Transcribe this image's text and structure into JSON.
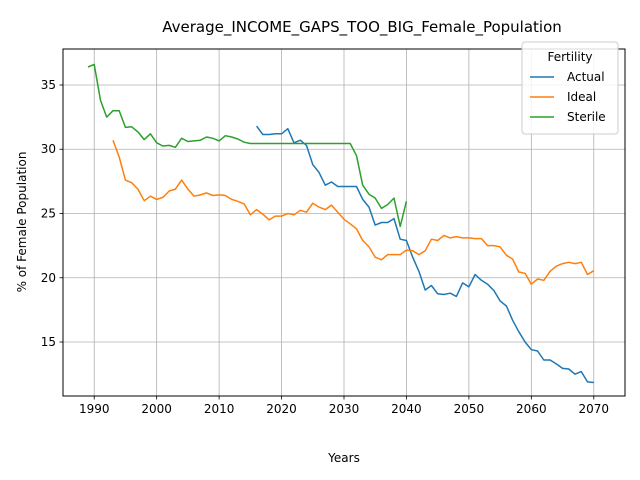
{
  "chart_data": {
    "type": "line",
    "title": "Average_INCOME_GAPS_TOO_BIG_Female_Population",
    "xlabel": "Years",
    "ylabel": "% of Female Population",
    "xlim": [
      1985,
      2075
    ],
    "ylim": [
      10.8,
      37.8
    ],
    "xticks": [
      1990,
      2000,
      2010,
      2020,
      2030,
      2040,
      2050,
      2060,
      2070
    ],
    "yticks": [
      15,
      20,
      25,
      30,
      35
    ],
    "grid": true,
    "legend": {
      "title": "Fertility",
      "placement": "top-right"
    },
    "series": [
      {
        "name": "Actual",
        "color": "#1f77b4",
        "points": [
          [
            2016,
            31.8
          ],
          [
            2017,
            31.15
          ],
          [
            2018,
            31.15
          ],
          [
            2019,
            31.2
          ],
          [
            2020,
            31.2
          ],
          [
            2021,
            31.6
          ],
          [
            2022,
            30.5
          ],
          [
            2023,
            30.7
          ],
          [
            2024,
            30.3
          ],
          [
            2025,
            28.8
          ],
          [
            2026,
            28.2
          ],
          [
            2027,
            27.2
          ],
          [
            2028,
            27.45
          ],
          [
            2029,
            27.1
          ],
          [
            2030,
            27.1
          ],
          [
            2031,
            27.1
          ],
          [
            2032,
            27.1
          ],
          [
            2033,
            26.1
          ],
          [
            2034,
            25.5
          ],
          [
            2035,
            24.1
          ],
          [
            2036,
            24.3
          ],
          [
            2037,
            24.3
          ],
          [
            2038,
            24.6
          ],
          [
            2039,
            23.0
          ],
          [
            2040,
            22.9
          ],
          [
            2041,
            21.6
          ],
          [
            2042,
            20.5
          ],
          [
            2043,
            19.05
          ],
          [
            2044,
            19.4
          ],
          [
            2045,
            18.75
          ],
          [
            2046,
            18.7
          ],
          [
            2047,
            18.8
          ],
          [
            2048,
            18.55
          ],
          [
            2049,
            19.6
          ],
          [
            2050,
            19.3
          ],
          [
            2051,
            20.25
          ],
          [
            2052,
            19.8
          ],
          [
            2053,
            19.5
          ],
          [
            2054,
            19.0
          ],
          [
            2055,
            18.2
          ],
          [
            2056,
            17.8
          ],
          [
            2057,
            16.7
          ],
          [
            2058,
            15.8
          ],
          [
            2059,
            15.0
          ],
          [
            2060,
            14.4
          ],
          [
            2061,
            14.3
          ],
          [
            2062,
            13.6
          ],
          [
            2063,
            13.6
          ],
          [
            2064,
            13.3
          ],
          [
            2065,
            12.95
          ],
          [
            2066,
            12.9
          ],
          [
            2067,
            12.5
          ],
          [
            2068,
            12.7
          ],
          [
            2069,
            11.9
          ],
          [
            2070,
            11.85
          ]
        ]
      },
      {
        "name": "Ideal",
        "color": "#ff7f0e",
        "points": [
          [
            1993,
            30.7
          ],
          [
            1994,
            29.4
          ],
          [
            1995,
            27.6
          ],
          [
            1996,
            27.4
          ],
          [
            1997,
            26.9
          ],
          [
            1998,
            26.0
          ],
          [
            1999,
            26.35
          ],
          [
            2000,
            26.1
          ],
          [
            2001,
            26.25
          ],
          [
            2002,
            26.75
          ],
          [
            2003,
            26.9
          ],
          [
            2004,
            27.6
          ],
          [
            2005,
            26.9
          ],
          [
            2006,
            26.35
          ],
          [
            2007,
            26.45
          ],
          [
            2008,
            26.6
          ],
          [
            2009,
            26.4
          ],
          [
            2010,
            26.45
          ],
          [
            2011,
            26.4
          ],
          [
            2012,
            26.1
          ],
          [
            2013,
            25.95
          ],
          [
            2014,
            25.75
          ],
          [
            2015,
            24.9
          ],
          [
            2016,
            25.3
          ],
          [
            2017,
            24.95
          ],
          [
            2018,
            24.5
          ],
          [
            2019,
            24.8
          ],
          [
            2020,
            24.8
          ],
          [
            2021,
            25.0
          ],
          [
            2022,
            24.9
          ],
          [
            2023,
            25.25
          ],
          [
            2024,
            25.1
          ],
          [
            2025,
            25.8
          ],
          [
            2026,
            25.5
          ],
          [
            2027,
            25.3
          ],
          [
            2028,
            25.65
          ],
          [
            2029,
            25.1
          ],
          [
            2030,
            24.55
          ],
          [
            2031,
            24.2
          ],
          [
            2032,
            23.8
          ],
          [
            2033,
            22.9
          ],
          [
            2034,
            22.4
          ],
          [
            2035,
            21.6
          ],
          [
            2036,
            21.4
          ],
          [
            2037,
            21.8
          ],
          [
            2038,
            21.8
          ],
          [
            2039,
            21.8
          ],
          [
            2040,
            22.15
          ],
          [
            2041,
            22.1
          ],
          [
            2042,
            21.8
          ],
          [
            2043,
            22.1
          ],
          [
            2044,
            23.0
          ],
          [
            2045,
            22.9
          ],
          [
            2046,
            23.3
          ],
          [
            2047,
            23.1
          ],
          [
            2048,
            23.2
          ],
          [
            2049,
            23.1
          ],
          [
            2050,
            23.1
          ],
          [
            2051,
            23.05
          ],
          [
            2052,
            23.05
          ],
          [
            2053,
            22.5
          ],
          [
            2054,
            22.5
          ],
          [
            2055,
            22.4
          ],
          [
            2056,
            21.75
          ],
          [
            2057,
            21.45
          ],
          [
            2058,
            20.45
          ],
          [
            2059,
            20.35
          ],
          [
            2060,
            19.5
          ],
          [
            2061,
            19.9
          ],
          [
            2062,
            19.8
          ],
          [
            2063,
            20.5
          ],
          [
            2064,
            20.9
          ],
          [
            2065,
            21.1
          ],
          [
            2066,
            21.2
          ],
          [
            2067,
            21.1
          ],
          [
            2068,
            21.2
          ],
          [
            2069,
            20.25
          ],
          [
            2070,
            20.55
          ]
        ]
      },
      {
        "name": "Sterile",
        "color": "#2ca02c",
        "points": [
          [
            1989,
            36.4
          ],
          [
            1990,
            36.6
          ],
          [
            1991,
            33.8
          ],
          [
            1992,
            32.5
          ],
          [
            1993,
            33.0
          ],
          [
            1994,
            33.0
          ],
          [
            1995,
            31.7
          ],
          [
            1996,
            31.75
          ],
          [
            1997,
            31.35
          ],
          [
            1998,
            30.75
          ],
          [
            1999,
            31.2
          ],
          [
            2000,
            30.5
          ],
          [
            2001,
            30.25
          ],
          [
            2002,
            30.3
          ],
          [
            2003,
            30.15
          ],
          [
            2004,
            30.85
          ],
          [
            2005,
            30.6
          ],
          [
            2006,
            30.65
          ],
          [
            2007,
            30.7
          ],
          [
            2008,
            30.95
          ],
          [
            2009,
            30.85
          ],
          [
            2010,
            30.65
          ],
          [
            2011,
            31.05
          ],
          [
            2012,
            30.95
          ],
          [
            2013,
            30.8
          ],
          [
            2014,
            30.55
          ],
          [
            2015,
            30.45
          ],
          [
            2016,
            30.45
          ],
          [
            2017,
            30.45
          ],
          [
            2018,
            30.45
          ],
          [
            2019,
            30.45
          ],
          [
            2020,
            30.45
          ],
          [
            2021,
            30.45
          ],
          [
            2022,
            30.45
          ],
          [
            2023,
            30.45
          ],
          [
            2024,
            30.45
          ],
          [
            2025,
            30.45
          ],
          [
            2026,
            30.45
          ],
          [
            2027,
            30.45
          ],
          [
            2028,
            30.45
          ],
          [
            2029,
            30.45
          ],
          [
            2030,
            30.45
          ],
          [
            2031,
            30.45
          ],
          [
            2032,
            29.5
          ],
          [
            2033,
            27.2
          ],
          [
            2034,
            26.5
          ],
          [
            2035,
            26.2
          ],
          [
            2036,
            25.4
          ],
          [
            2037,
            25.7
          ],
          [
            2038,
            26.2
          ],
          [
            2039,
            24.0
          ],
          [
            2040,
            25.95
          ]
        ]
      }
    ]
  }
}
